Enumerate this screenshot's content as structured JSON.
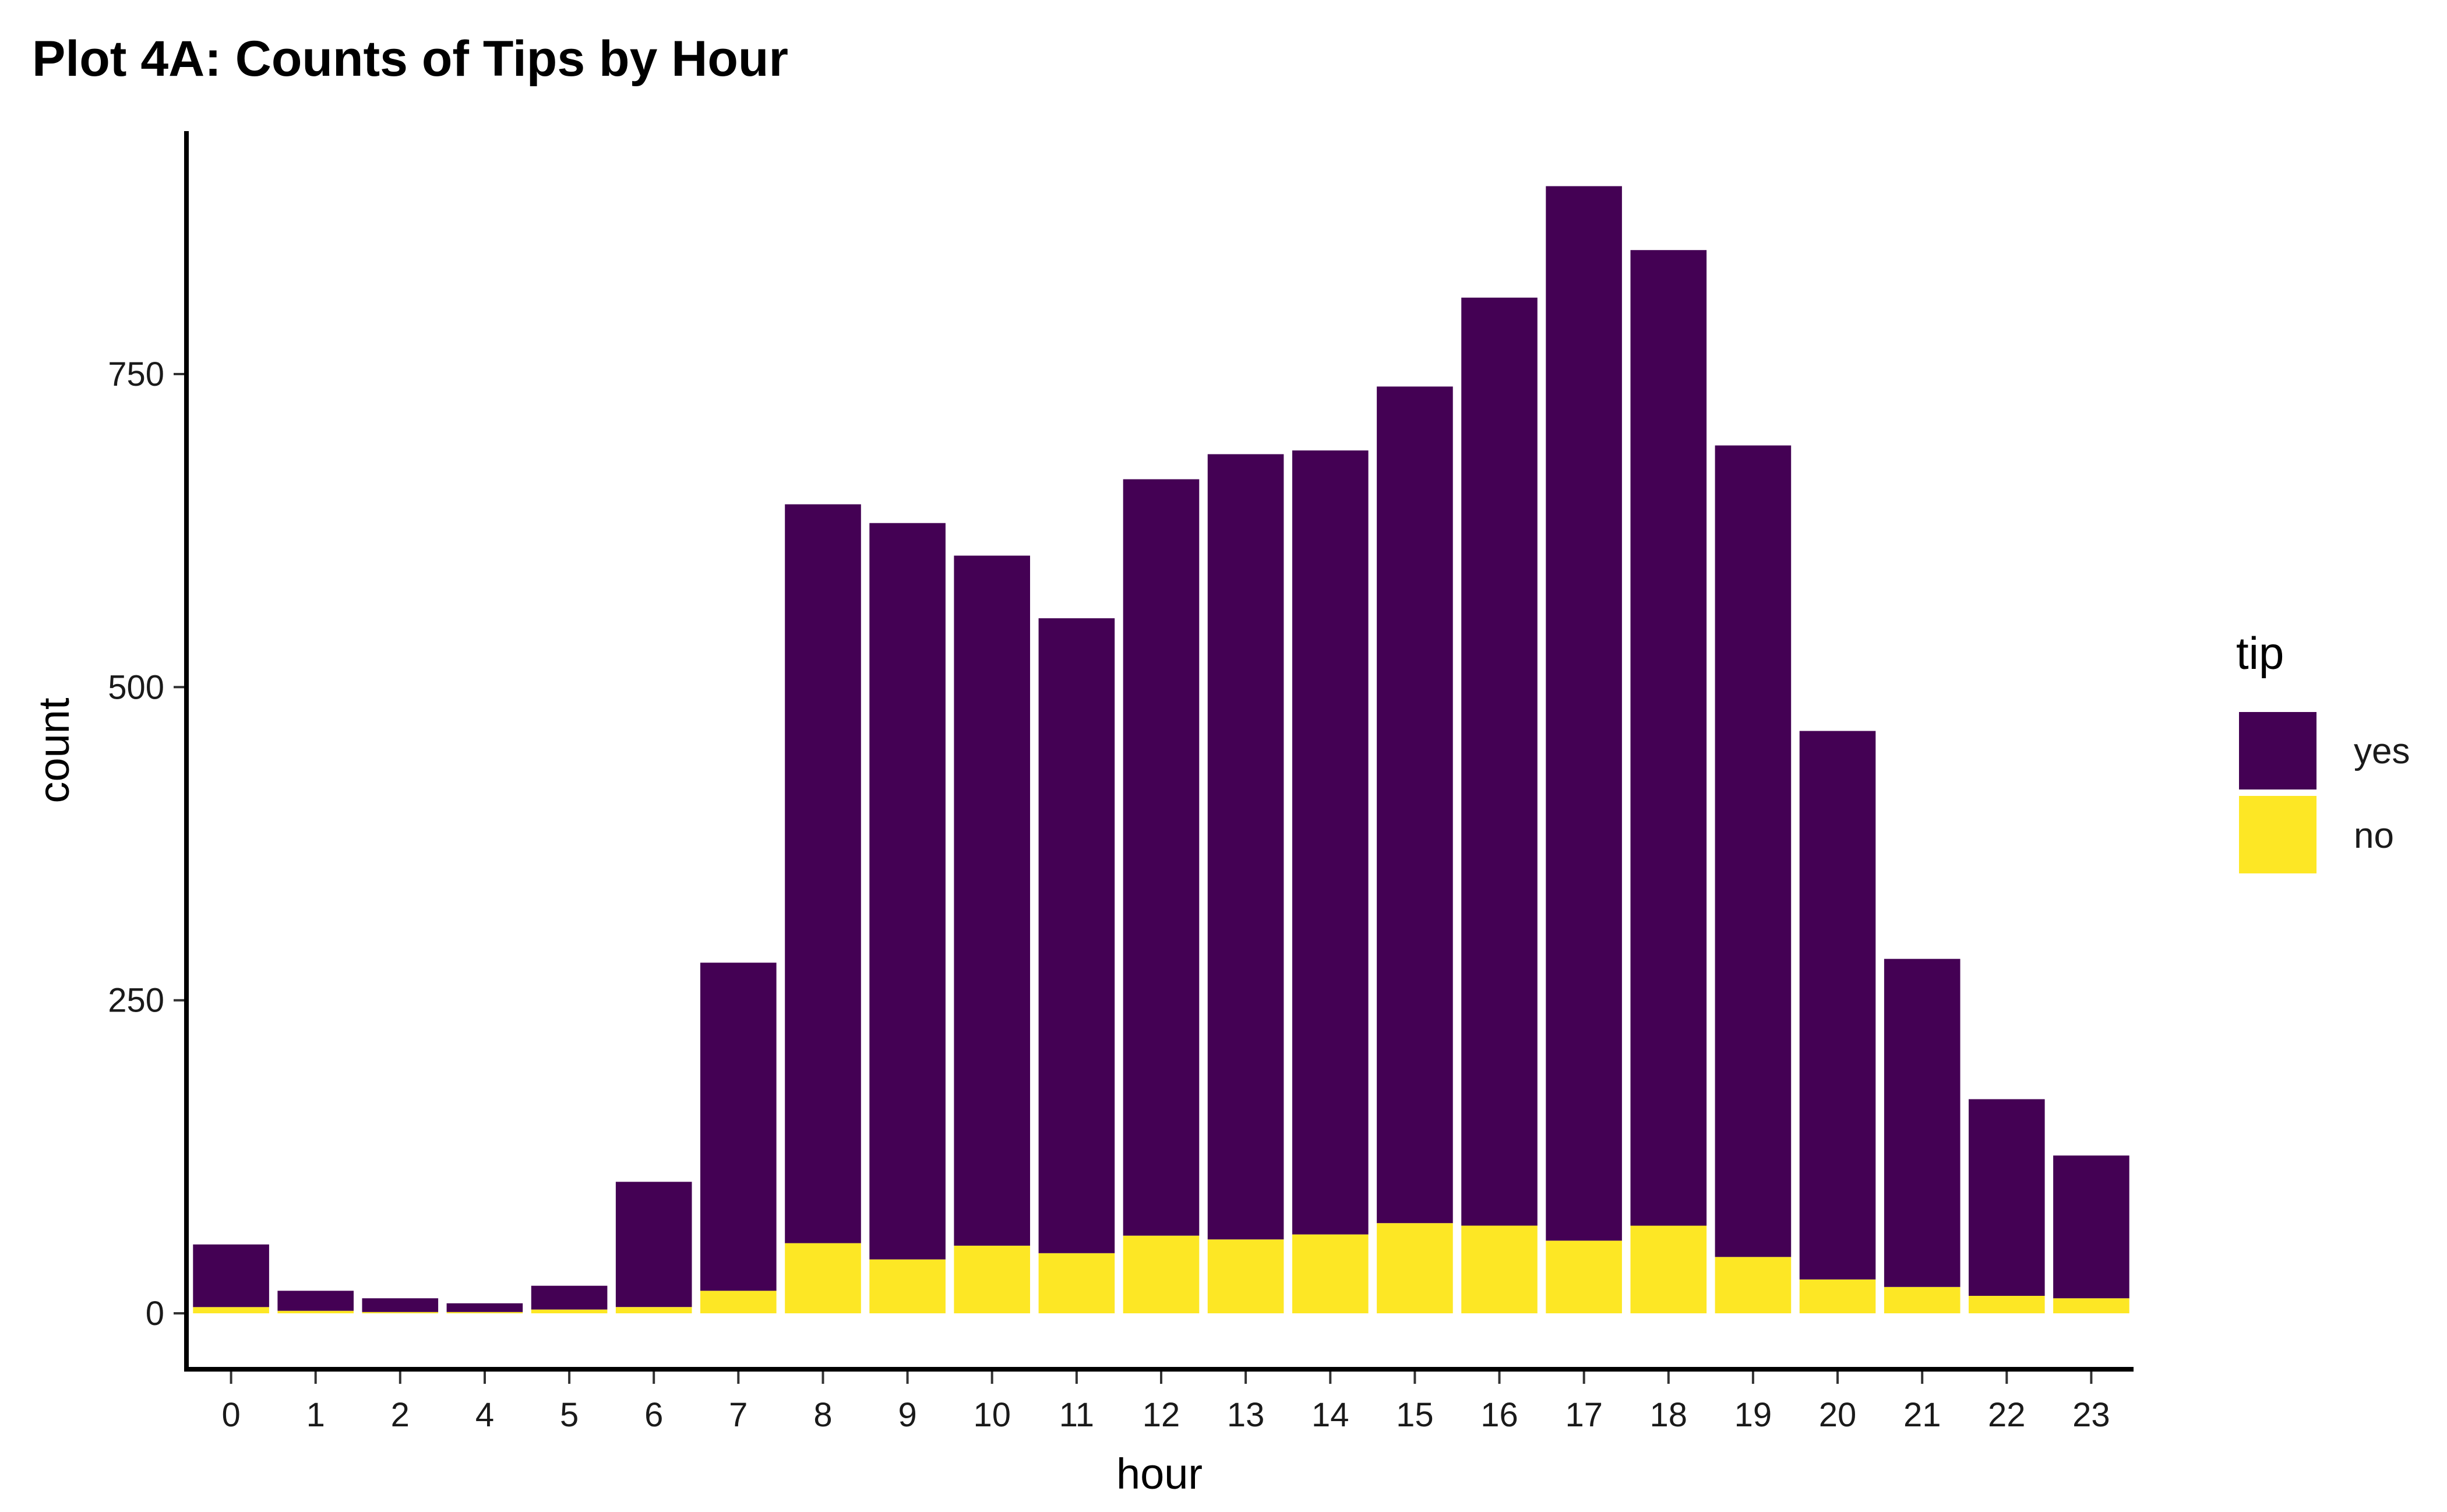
{
  "chart_data": {
    "type": "bar",
    "stacked": true,
    "title": "Plot 4A: Counts of Tips by Hour",
    "xlabel": "hour",
    "ylabel": "count",
    "categories": [
      "0",
      "1",
      "2",
      "4",
      "5",
      "6",
      "7",
      "8",
      "9",
      "10",
      "11",
      "12",
      "13",
      "14",
      "15",
      "16",
      "17",
      "18",
      "19",
      "20",
      "21",
      "22",
      "23"
    ],
    "series": [
      {
        "name": "no",
        "color": "#FDE725",
        "values": [
          5,
          2,
          1,
          1,
          3,
          5,
          18,
          56,
          43,
          54,
          48,
          62,
          59,
          63,
          72,
          70,
          58,
          70,
          45,
          27,
          21,
          14,
          12
        ]
      },
      {
        "name": "yes",
        "color": "#440154",
        "values": [
          50,
          16,
          11,
          7,
          19,
          100,
          262,
          590,
          588,
          551,
          507,
          604,
          627,
          626,
          668,
          741,
          842,
          779,
          648,
          438,
          262,
          157,
          114
        ]
      }
    ],
    "yticks": [
      0,
      250,
      500,
      750
    ],
    "ylim": [
      -42,
      943
    ],
    "grid": false,
    "legend": {
      "title": "tip",
      "position": "right",
      "entries": [
        {
          "label": "yes",
          "color": "#440154"
        },
        {
          "label": "no",
          "color": "#FDE725"
        }
      ]
    }
  }
}
